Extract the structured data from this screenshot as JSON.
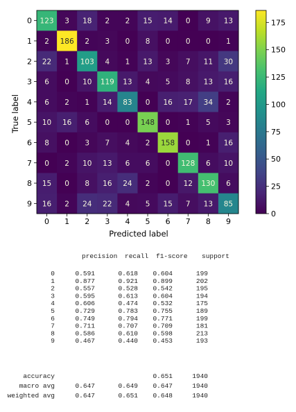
{
  "chart_data": {
    "type": "heatmap",
    "xlabel": "Predicted label",
    "ylabel": "True label",
    "x_ticks": [
      "0",
      "1",
      "2",
      "3",
      "4",
      "5",
      "6",
      "7",
      "8",
      "9"
    ],
    "y_ticks": [
      "0",
      "1",
      "2",
      "3",
      "4",
      "5",
      "6",
      "7",
      "8",
      "9"
    ],
    "matrix": [
      [
        123,
        3,
        18,
        2,
        2,
        15,
        14,
        0,
        9,
        13
      ],
      [
        2,
        186,
        2,
        3,
        0,
        8,
        0,
        0,
        0,
        1
      ],
      [
        22,
        1,
        103,
        4,
        1,
        13,
        3,
        7,
        11,
        30
      ],
      [
        6,
        0,
        10,
        119,
        13,
        4,
        5,
        8,
        13,
        16
      ],
      [
        6,
        2,
        1,
        14,
        83,
        0,
        16,
        17,
        34,
        2
      ],
      [
        10,
        16,
        6,
        0,
        0,
        148,
        0,
        1,
        5,
        3
      ],
      [
        8,
        0,
        3,
        7,
        4,
        2,
        158,
        0,
        1,
        16
      ],
      [
        0,
        2,
        10,
        13,
        6,
        6,
        0,
        128,
        6,
        10
      ],
      [
        15,
        0,
        8,
        16,
        24,
        2,
        0,
        12,
        130,
        6
      ],
      [
        16,
        2,
        24,
        22,
        4,
        5,
        15,
        7,
        13,
        85
      ]
    ],
    "colormap": "viridis",
    "vmin": 0,
    "vmax": 186,
    "colorbar_ticks": [
      0,
      25,
      50,
      75,
      100,
      125,
      150,
      175
    ]
  },
  "report": {
    "headers": [
      "precision",
      "recall",
      "f1-score",
      "support"
    ],
    "rows": [
      {
        "label": "0",
        "precision": "0.591",
        "recall": "0.618",
        "f1": "0.604",
        "support": "199"
      },
      {
        "label": "1",
        "precision": "0.877",
        "recall": "0.921",
        "f1": "0.899",
        "support": "202"
      },
      {
        "label": "2",
        "precision": "0.557",
        "recall": "0.528",
        "f1": "0.542",
        "support": "195"
      },
      {
        "label": "3",
        "precision": "0.595",
        "recall": "0.613",
        "f1": "0.604",
        "support": "194"
      },
      {
        "label": "4",
        "precision": "0.606",
        "recall": "0.474",
        "f1": "0.532",
        "support": "175"
      },
      {
        "label": "5",
        "precision": "0.729",
        "recall": "0.783",
        "f1": "0.755",
        "support": "189"
      },
      {
        "label": "6",
        "precision": "0.749",
        "recall": "0.794",
        "f1": "0.771",
        "support": "199"
      },
      {
        "label": "7",
        "precision": "0.711",
        "recall": "0.707",
        "f1": "0.709",
        "support": "181"
      },
      {
        "label": "8",
        "precision": "0.586",
        "recall": "0.610",
        "f1": "0.598",
        "support": "213"
      },
      {
        "label": "9",
        "precision": "0.467",
        "recall": "0.440",
        "f1": "0.453",
        "support": "193"
      }
    ],
    "summary": [
      {
        "label": "accuracy",
        "precision": "",
        "recall": "",
        "f1": "0.651",
        "support": "1940"
      },
      {
        "label": "macro avg",
        "precision": "0.647",
        "recall": "0.649",
        "f1": "0.647",
        "support": "1940"
      },
      {
        "label": "weighted avg",
        "precision": "0.647",
        "recall": "0.651",
        "f1": "0.648",
        "support": "1940"
      }
    ]
  }
}
